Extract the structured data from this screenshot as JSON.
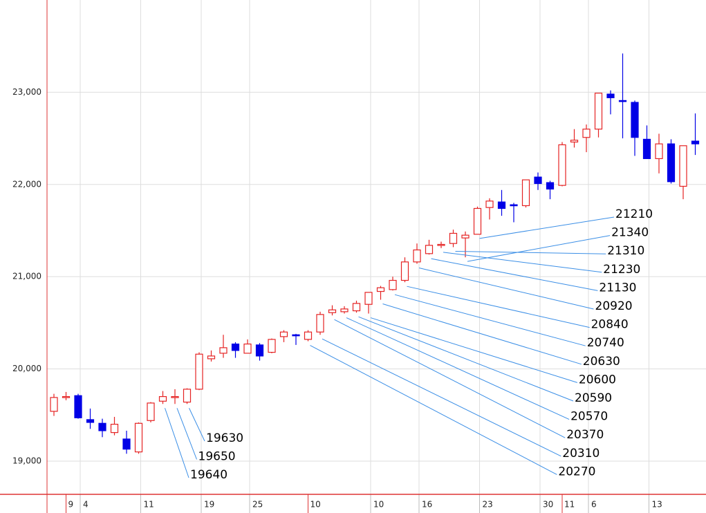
{
  "chart_data": {
    "type": "candlestick",
    "categories": [
      null,
      null,
      "4",
      null,
      null,
      null,
      null,
      "11",
      null,
      null,
      null,
      null,
      "19",
      null,
      null,
      null,
      "25",
      null,
      null,
      null,
      null,
      null,
      null,
      null,
      null,
      null,
      "10",
      null,
      null,
      null,
      "16",
      null,
      null,
      null,
      null,
      "23",
      null,
      null,
      null,
      null,
      "30",
      null,
      null,
      null,
      "6",
      null,
      null,
      null,
      null,
      "13",
      null,
      null,
      null,
      null
    ],
    "month_labels": [
      {
        "value": 1,
        "label": "9"
      },
      {
        "value": 21,
        "label": "10"
      },
      {
        "value": 42,
        "label": "11"
      }
    ],
    "open": [
      19540,
      19690,
      19710,
      19450,
      19410,
      19310,
      19240,
      19100,
      19440,
      19650,
      19690,
      19640,
      19780,
      20110,
      20170,
      20270,
      20170,
      20260,
      20180,
      20350,
      20370,
      20320,
      20400,
      20610,
      20620,
      20630,
      20700,
      20840,
      20860,
      20960,
      21160,
      21250,
      21340,
      21360,
      21420,
      21460,
      21750,
      21810,
      21780,
      21770,
      22080,
      22020,
      21990,
      22460,
      22510,
      22600,
      22980,
      22910,
      22890,
      22490,
      22280,
      22440,
      21980,
      22470
    ],
    "high": [
      19730,
      19750,
      19730,
      19570,
      19460,
      19480,
      19330,
      19420,
      19640,
      19760,
      19780,
      19790,
      20180,
      20200,
      20370,
      20290,
      20320,
      20280,
      20330,
      20420,
      20380,
      20420,
      20620,
      20690,
      20680,
      20740,
      20830,
      20900,
      21000,
      21210,
      21360,
      21400,
      21380,
      21510,
      21490,
      21760,
      21850,
      21940,
      21800,
      22050,
      22130,
      22040,
      22460,
      22600,
      22650,
      22990,
      23020,
      23420,
      22910,
      22640,
      22550,
      22490,
      22420,
      22770
    ],
    "low": [
      19490,
      19660,
      19460,
      19350,
      19260,
      19280,
      19080,
      19080,
      19420,
      19620,
      19620,
      19620,
      19770,
      20080,
      20120,
      20120,
      20170,
      20090,
      20170,
      20290,
      20260,
      20300,
      20370,
      20580,
      20600,
      20610,
      20600,
      20750,
      20850,
      20940,
      21140,
      21240,
      21310,
      21320,
      21210,
      21460,
      21620,
      21660,
      21590,
      21750,
      21940,
      21840,
      21980,
      22400,
      22350,
      22510,
      22760,
      22500,
      22310,
      22280,
      22120,
      22010,
      21840,
      22320
    ],
    "close": [
      19690,
      19700,
      19470,
      19420,
      19330,
      19400,
      19130,
      19410,
      19630,
      19700,
      19700,
      19780,
      20160,
      20140,
      20230,
      20200,
      20270,
      20140,
      20320,
      20400,
      20360,
      20400,
      20590,
      20640,
      20650,
      20710,
      20830,
      20880,
      20960,
      21160,
      21290,
      21340,
      21350,
      21470,
      21450,
      21740,
      21820,
      21740,
      21770,
      22050,
      22010,
      21950,
      22430,
      22480,
      22600,
      22990,
      22940,
      22900,
      22510,
      22280,
      22440,
      22030,
      22420,
      22440
    ],
    "up_color": "#e52222",
    "down_color": "#0000e6",
    "ylim": [
      18640,
      24000
    ],
    "yticks": [
      {
        "value": 19000,
        "label": "19,000"
      },
      {
        "value": 20000,
        "label": "20,000"
      },
      {
        "value": 21000,
        "label": "21,000"
      },
      {
        "value": 22000,
        "label": "22,000"
      },
      {
        "value": 23000,
        "label": "23,000"
      }
    ],
    "grid": true,
    "annotations": [
      {
        "candle": 9,
        "value": 19640
      },
      {
        "candle": 10,
        "value": 19650
      },
      {
        "candle": 11,
        "value": 19630
      },
      {
        "candle": 21,
        "value": 20270
      },
      {
        "candle": 22,
        "value": 20310
      },
      {
        "candle": 23,
        "value": 20370
      },
      {
        "candle": 24,
        "value": 20570
      },
      {
        "candle": 25,
        "value": 20590
      },
      {
        "candle": 26,
        "value": 20600
      },
      {
        "candle": 27,
        "value": 20630
      },
      {
        "candle": 28,
        "value": 20740
      },
      {
        "candle": 29,
        "value": 20840
      },
      {
        "candle": 30,
        "value": 20920
      },
      {
        "candle": 31,
        "value": 21130
      },
      {
        "candle": 32,
        "value": 21230
      },
      {
        "candle": 33,
        "value": 21310
      },
      {
        "candle": 34,
        "value": 21340
      },
      {
        "candle": 35,
        "value": 21210
      }
    ],
    "annotation_color": "#3a8ee6"
  }
}
